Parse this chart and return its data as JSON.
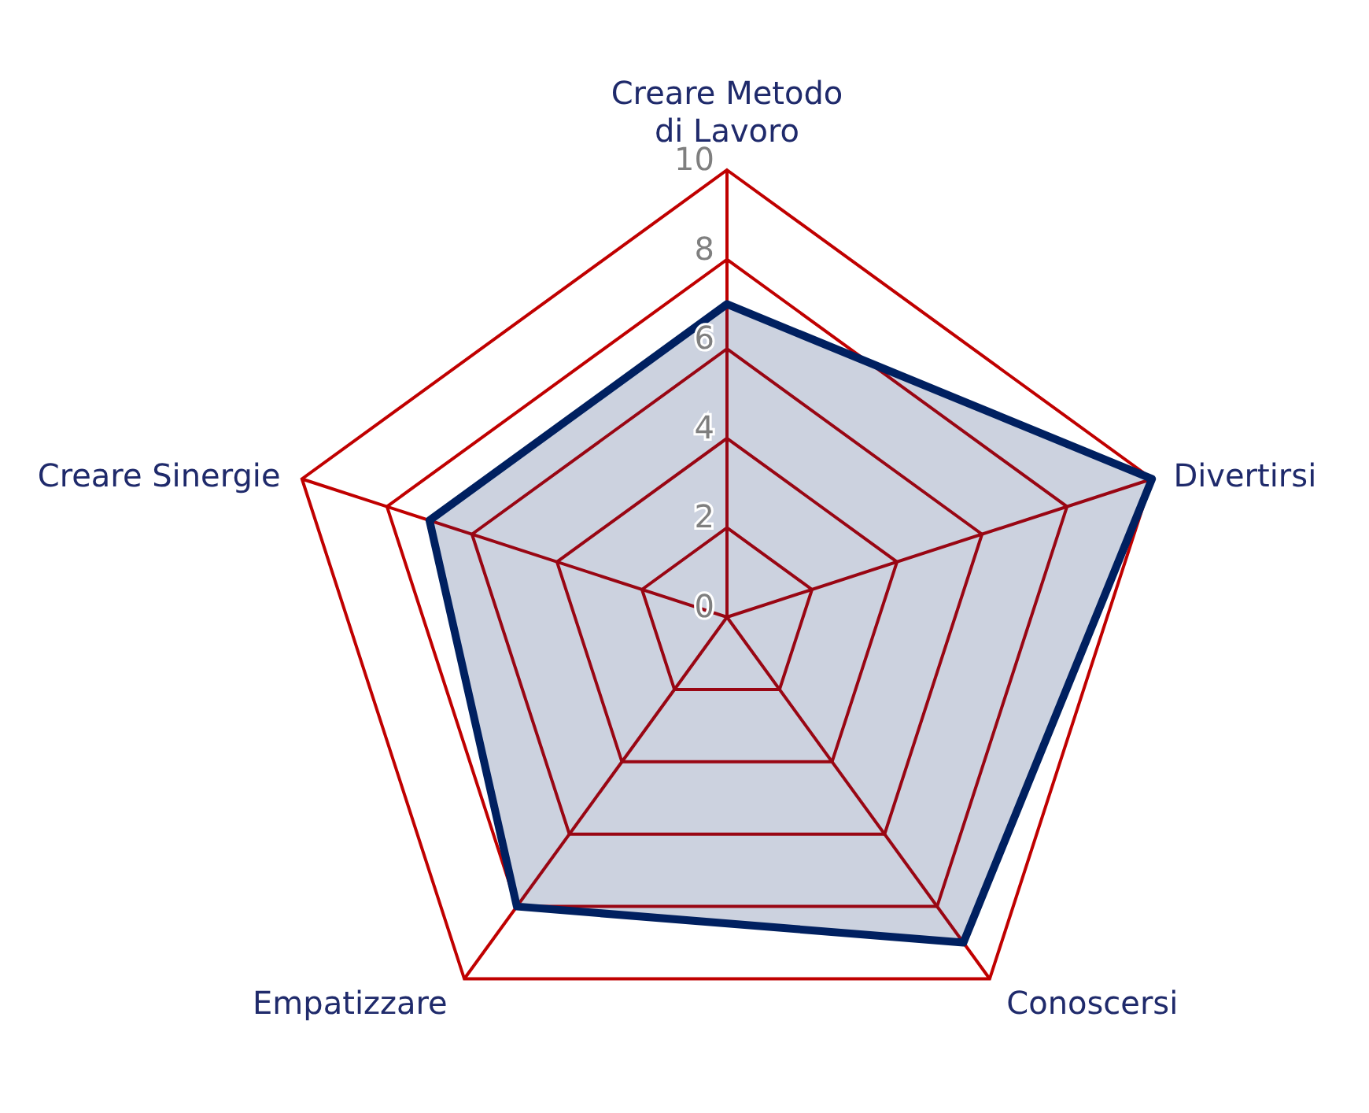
{
  "chart_data": {
    "type": "radar",
    "categories": [
      "Creare Metodo di Lavoro",
      "Divertirsi",
      "Conoscersi",
      "Empatizzare",
      "Creare Sinergie"
    ],
    "series": [
      {
        "color": "#002060",
        "values": [
          7,
          10,
          9,
          8,
          7
        ]
      }
    ],
    "ylim": [
      0,
      10
    ],
    "yticks": [
      0,
      2,
      4,
      6,
      8,
      10
    ],
    "grid": true
  }
}
